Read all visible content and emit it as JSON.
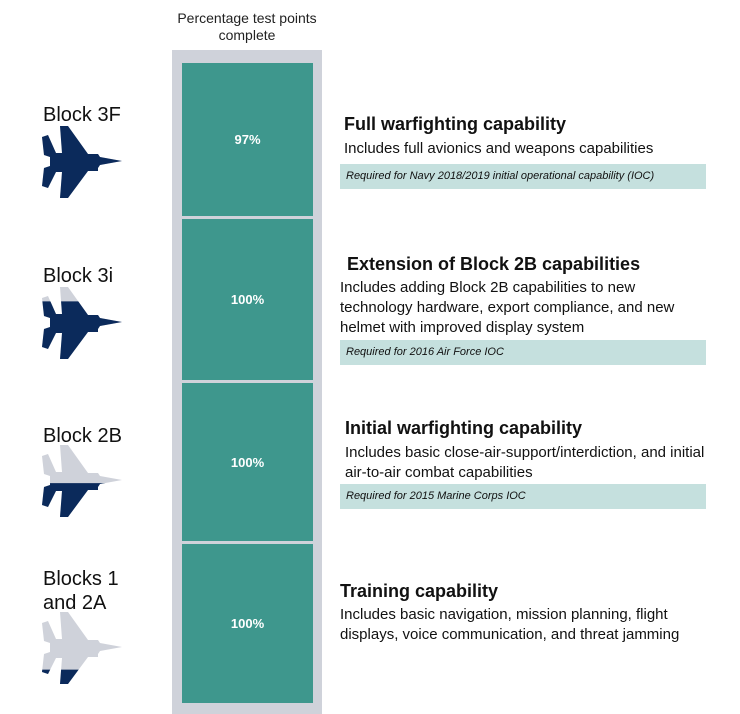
{
  "column_header": "Percentage test points complete",
  "blocks": [
    {
      "label": "Block 3F",
      "percent": "97%",
      "title": "Full warfighting capability",
      "description": "Includes full avionics and weapons capabilities",
      "note": "Required for Navy 2018/2019 initial operational capability (IOC)",
      "jet_fill": 1.0
    },
    {
      "label": "Block 3i",
      "percent": "100%",
      "title": "Extension of Block 2B capabilities",
      "description": "Includes adding Block 2B capabilities to new technology hardware, export compliance, and new helmet with improved display system",
      "note": "Required for 2016 Air Force IOC",
      "jet_fill": 0.8
    },
    {
      "label": "Block 2B",
      "percent": "100%",
      "title": "Initial warfighting capability",
      "description": "Includes basic close-air-support/interdiction, and initial air-to-air combat capabilities",
      "note": "Required for 2015 Marine Corps IOC",
      "jet_fill": 0.47
    },
    {
      "label": "Blocks 1 and 2A",
      "percent": "100%",
      "title": "Training capability",
      "description": "Includes basic navigation, mission planning, flight displays, voice communication, and threat jamming",
      "jet_fill": 0.2
    }
  ],
  "colors": {
    "navy": "#0b2a5b",
    "gray": "#cfd2da",
    "teal": "#3e978d",
    "note": "#c5e0de"
  }
}
